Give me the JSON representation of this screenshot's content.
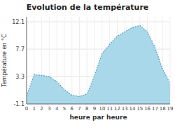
{
  "chart_data": {
    "type": "area",
    "title": "Evolution de la température",
    "x_label": "heure par heure",
    "y_label": "Température en °C",
    "x": [
      0,
      1,
      2,
      3,
      4,
      5,
      6,
      7,
      8,
      9,
      10,
      11,
      12,
      13,
      14,
      15,
      16,
      17,
      18,
      19
    ],
    "values": [
      0.2,
      3.6,
      3.5,
      3.3,
      2.5,
      1.2,
      0.3,
      0.1,
      0.5,
      3.5,
      7.0,
      8.5,
      9.8,
      10.5,
      11.2,
      11.5,
      10.5,
      8.0,
      4.5,
      2.2
    ],
    "color": "#a8d8ea",
    "line_style": "dotted",
    "xlim": [
      0,
      19
    ],
    "ylim": [
      -1.1,
      12.9
    ],
    "xticks": [
      0,
      1,
      2,
      3,
      4,
      5,
      6,
      7,
      8,
      9,
      10,
      11,
      12,
      13,
      14,
      15,
      16,
      17,
      18,
      19
    ],
    "yticks": [
      -1.1,
      3.3,
      7.7,
      12.1
    ],
    "grid": true
  }
}
